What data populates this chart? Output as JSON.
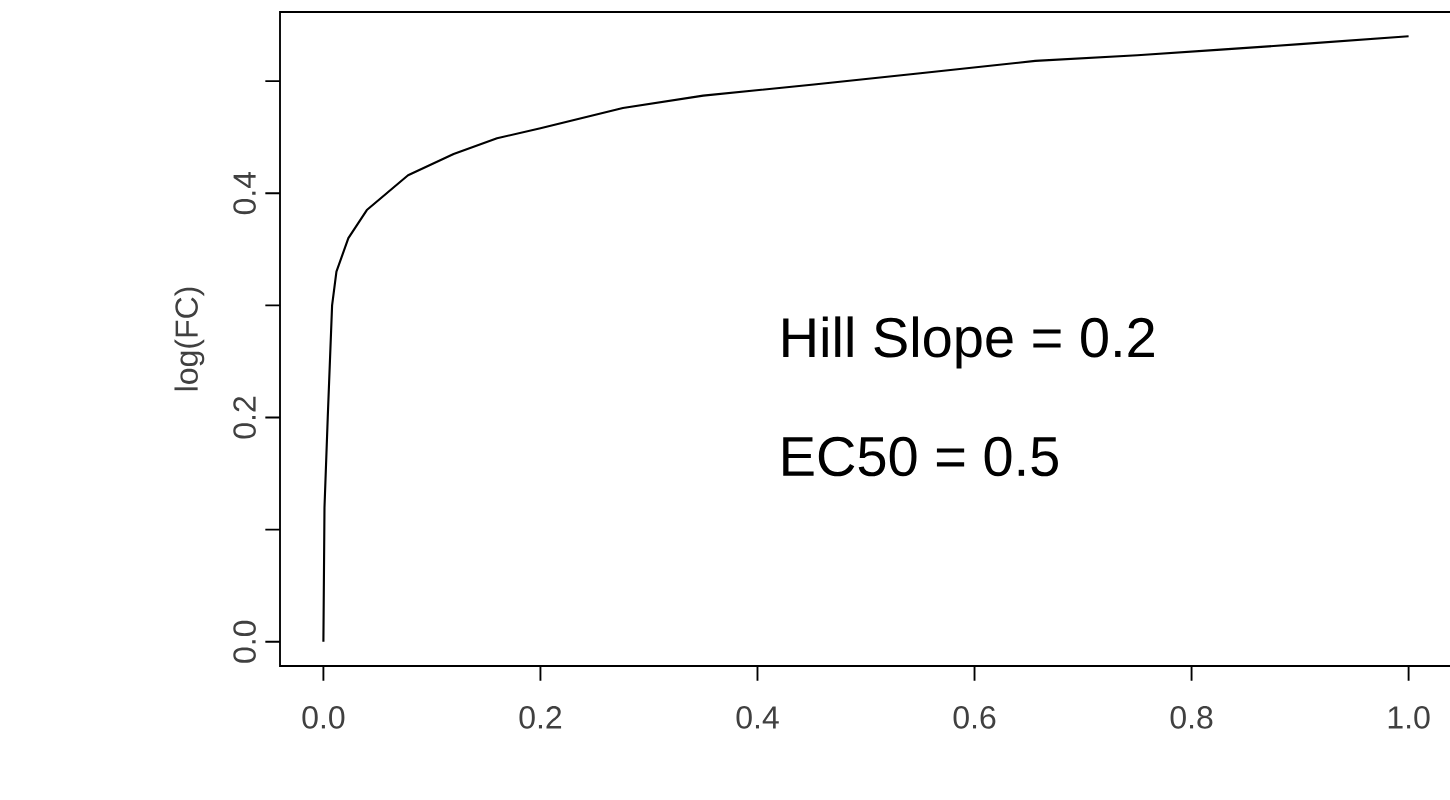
{
  "chart_data": {
    "type": "line",
    "ylabel": "log(FC)",
    "annotations": [
      "Hill Slope = 0.2",
      "EC50 = 0.5"
    ],
    "x": [
      0,
      0.001,
      0.004,
      0.008,
      0.012,
      0.023,
      0.04,
      0.078,
      0.12,
      0.16,
      0.2,
      0.276,
      0.35,
      0.452,
      0.55,
      0.656,
      0.75,
      0.827,
      0.9,
      1.0
    ],
    "series": [
      {
        "color": "#000000",
        "values": [
          0,
          0.12,
          0.2,
          0.3,
          0.33,
          0.36,
          0.385,
          0.416,
          0.435,
          0.449,
          0.458,
          0.476,
          0.487,
          0.497,
          0.507,
          0.518,
          0.523,
          0.528,
          0.533,
          0.54
        ]
      }
    ],
    "xlim": [
      -0.04,
      1.04
    ],
    "ylim": [
      -0.0216,
      0.5616
    ],
    "xticks": [
      {
        "value": 0,
        "label": "0.0"
      },
      {
        "value": 0.2,
        "label": "0.2"
      },
      {
        "value": 0.4,
        "label": "0.4"
      },
      {
        "value": 0.6,
        "label": "0.6"
      },
      {
        "value": 0.8,
        "label": "0.8"
      },
      {
        "value": 1.0,
        "label": "1.0"
      }
    ],
    "yticks": [
      {
        "value": 0,
        "label": "0.0"
      },
      {
        "value": 0.1,
        "label": null
      },
      {
        "value": 0.2,
        "label": "0.2"
      },
      {
        "value": 0.3,
        "label": null
      },
      {
        "value": 0.4,
        "label": "0.4"
      },
      {
        "value": 0.5,
        "label": null
      }
    ],
    "grid": false,
    "legend": false,
    "marker": "none",
    "line_style": "solid"
  }
}
